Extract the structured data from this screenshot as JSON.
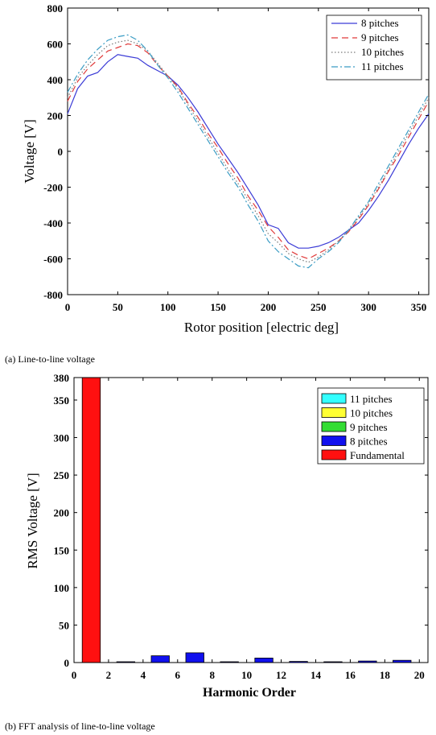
{
  "captions": {
    "a": "(a)  Line-to-line  voltage",
    "b": "(b)  FFT  analysis  of  line-to-line  voltage"
  },
  "chart_data": [
    {
      "type": "line",
      "xlabel": "Rotor position [electric deg]",
      "ylabel": "Voltage [V]",
      "xlim": [
        0,
        360
      ],
      "ylim": [
        -800,
        800
      ],
      "xticks": [
        0,
        50,
        100,
        150,
        200,
        250,
        300,
        350
      ],
      "yticks": [
        800,
        600,
        400,
        200,
        0,
        -200,
        -400,
        -600,
        -800
      ],
      "legend_position": "top-right",
      "x": [
        0,
        10,
        20,
        30,
        40,
        50,
        60,
        70,
        80,
        90,
        100,
        110,
        120,
        130,
        140,
        150,
        160,
        170,
        180,
        190,
        200,
        210,
        220,
        230,
        240,
        250,
        260,
        270,
        280,
        290,
        300,
        310,
        320,
        330,
        340,
        350,
        360
      ],
      "series": [
        {
          "name": "8 pitches",
          "color": "#3b3bd6",
          "dash": "none",
          "values": [
            210,
            350,
            420,
            440,
            500,
            540,
            530,
            520,
            480,
            450,
            420,
            370,
            300,
            220,
            130,
            40,
            -40,
            -120,
            -210,
            -300,
            -410,
            -430,
            -510,
            -540,
            -540,
            -530,
            -510,
            -480,
            -440,
            -400,
            -330,
            -250,
            -160,
            -60,
            40,
            130,
            210
          ]
        },
        {
          "name": "9 pitches",
          "color": "#e03a3a",
          "dash": "8 5",
          "values": [
            280,
            390,
            460,
            510,
            560,
            580,
            600,
            590,
            550,
            480,
            420,
            360,
            270,
            190,
            100,
            20,
            -70,
            -150,
            -250,
            -330,
            -420,
            -480,
            -550,
            -580,
            -600,
            -570,
            -540,
            -500,
            -450,
            -380,
            -300,
            -210,
            -110,
            -20,
            80,
            180,
            280
          ]
        },
        {
          "name": "10 pitches",
          "color": "#7a7a7a",
          "dash": "1.5 2.5",
          "values": [
            300,
            410,
            480,
            540,
            590,
            610,
            620,
            600,
            560,
            490,
            420,
            350,
            260,
            170,
            80,
            -10,
            -100,
            -180,
            -270,
            -360,
            -460,
            -510,
            -570,
            -600,
            -620,
            -590,
            -550,
            -500,
            -440,
            -370,
            -290,
            -200,
            -100,
            0,
            100,
            200,
            300
          ]
        },
        {
          "name": "11 pitches",
          "color": "#3a9cc4",
          "dash": "8 3 2 3",
          "values": [
            330,
            430,
            510,
            570,
            620,
            640,
            650,
            620,
            560,
            480,
            410,
            330,
            240,
            150,
            60,
            -30,
            -120,
            -200,
            -300,
            -390,
            -500,
            -560,
            -600,
            -640,
            -650,
            -600,
            -560,
            -510,
            -440,
            -360,
            -280,
            -180,
            -80,
            20,
            120,
            220,
            320
          ]
        }
      ]
    },
    {
      "type": "bar",
      "xlabel": "Harmonic Order",
      "ylabel": "RMS Voltage [V]",
      "xlim": [
        0,
        20.5
      ],
      "ylim": [
        0,
        380
      ],
      "xticks": [
        0,
        2,
        4,
        6,
        8,
        10,
        12,
        14,
        16,
        18,
        20
      ],
      "yticks": [
        380,
        350,
        300,
        250,
        200,
        150,
        100,
        50,
        0
      ],
      "legend_position": "top-right",
      "legend": [
        {
          "label": "11 pitches",
          "color": "#33ffff"
        },
        {
          "label": "10 pitches",
          "color": "#ffff33"
        },
        {
          "label": "9 pitches",
          "color": "#33dd33"
        },
        {
          "label": "8 pitches",
          "color": "#1010ee"
        },
        {
          "label": "Fundamental",
          "color": "#ff1010"
        }
      ],
      "bars": [
        {
          "order": 1,
          "value": 380,
          "color": "#ff1010"
        },
        {
          "order": 3,
          "value": 0.5,
          "color": "#1010ee"
        },
        {
          "order": 5,
          "value": 9,
          "color": "#1010ee"
        },
        {
          "order": 7,
          "value": 13,
          "color": "#1010ee"
        },
        {
          "order": 9,
          "value": 0.5,
          "color": "#1010ee"
        },
        {
          "order": 11,
          "value": 6,
          "color": "#1010ee"
        },
        {
          "order": 13,
          "value": 1.5,
          "color": "#1010ee"
        },
        {
          "order": 15,
          "value": 0.5,
          "color": "#1010ee"
        },
        {
          "order": 17,
          "value": 2,
          "color": "#1010ee"
        },
        {
          "order": 19,
          "value": 3,
          "color": "#1010ee"
        }
      ]
    }
  ]
}
